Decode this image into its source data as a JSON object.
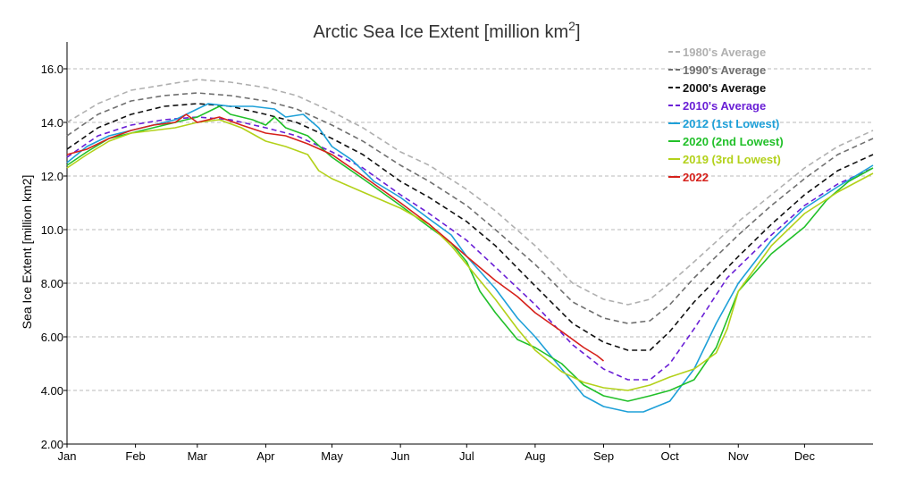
{
  "chart_data": {
    "type": "line",
    "title_main": "Arctic Sea Ice Extent [million km",
    "title_sup": "2",
    "title_end": "]",
    "ylabel": "Sea Ice Extent [million km2]",
    "xlabel": "",
    "xlim": [
      1,
      366
    ],
    "ylim": [
      2,
      17
    ],
    "y_ticks": [
      2,
      4,
      6,
      8,
      10,
      12,
      14,
      16
    ],
    "y_tick_labels": [
      "2.00",
      "4.00",
      "6.00",
      "8.00",
      "10.0",
      "12.0",
      "14.0",
      "16.0"
    ],
    "months": [
      {
        "label": "Jan",
        "day": 1
      },
      {
        "label": "Feb",
        "day": 32
      },
      {
        "label": "Mar",
        "day": 60
      },
      {
        "label": "Apr",
        "day": 91
      },
      {
        "label": "May",
        "day": 121
      },
      {
        "label": "Jun",
        "day": 152
      },
      {
        "label": "Jul",
        "day": 182
      },
      {
        "label": "Aug",
        "day": 213
      },
      {
        "label": "Sep",
        "day": 244
      },
      {
        "label": "Oct",
        "day": 274
      },
      {
        "label": "Nov",
        "day": 305
      },
      {
        "label": "Dec",
        "day": 335
      }
    ],
    "grid": "horizontal dashed",
    "legend_position": "top-right",
    "series": [
      {
        "name": "1980's Average",
        "color": "#b0b0b0",
        "dash": true,
        "points": [
          [
            1,
            14.0
          ],
          [
            15,
            14.7
          ],
          [
            30,
            15.2
          ],
          [
            45,
            15.4
          ],
          [
            60,
            15.6
          ],
          [
            75,
            15.5
          ],
          [
            91,
            15.3
          ],
          [
            105,
            15.0
          ],
          [
            121,
            14.4
          ],
          [
            135,
            13.8
          ],
          [
            152,
            12.9
          ],
          [
            165,
            12.4
          ],
          [
            182,
            11.5
          ],
          [
            195,
            10.7
          ],
          [
            213,
            9.4
          ],
          [
            230,
            8.0
          ],
          [
            244,
            7.4
          ],
          [
            255,
            7.2
          ],
          [
            265,
            7.4
          ],
          [
            274,
            8.0
          ],
          [
            285,
            8.8
          ],
          [
            305,
            10.3
          ],
          [
            320,
            11.3
          ],
          [
            335,
            12.3
          ],
          [
            350,
            13.1
          ],
          [
            366,
            13.7
          ]
        ]
      },
      {
        "name": "1990's Average",
        "color": "#707070",
        "dash": true,
        "points": [
          [
            1,
            13.5
          ],
          [
            15,
            14.3
          ],
          [
            30,
            14.8
          ],
          [
            45,
            15.0
          ],
          [
            60,
            15.1
          ],
          [
            75,
            15.0
          ],
          [
            91,
            14.8
          ],
          [
            105,
            14.5
          ],
          [
            121,
            13.9
          ],
          [
            135,
            13.3
          ],
          [
            152,
            12.4
          ],
          [
            165,
            11.8
          ],
          [
            182,
            10.9
          ],
          [
            195,
            10.0
          ],
          [
            213,
            8.7
          ],
          [
            230,
            7.3
          ],
          [
            244,
            6.7
          ],
          [
            255,
            6.5
          ],
          [
            265,
            6.6
          ],
          [
            274,
            7.2
          ],
          [
            285,
            8.2
          ],
          [
            305,
            9.8
          ],
          [
            320,
            10.9
          ],
          [
            335,
            11.9
          ],
          [
            350,
            12.8
          ],
          [
            366,
            13.4
          ]
        ]
      },
      {
        "name": "2000's Average",
        "color": "#111111",
        "dash": true,
        "points": [
          [
            1,
            13.0
          ],
          [
            15,
            13.8
          ],
          [
            30,
            14.3
          ],
          [
            45,
            14.6
          ],
          [
            60,
            14.7
          ],
          [
            75,
            14.6
          ],
          [
            91,
            14.3
          ],
          [
            105,
            14.0
          ],
          [
            121,
            13.4
          ],
          [
            135,
            12.8
          ],
          [
            152,
            11.8
          ],
          [
            165,
            11.2
          ],
          [
            182,
            10.3
          ],
          [
            195,
            9.4
          ],
          [
            213,
            7.9
          ],
          [
            230,
            6.5
          ],
          [
            244,
            5.8
          ],
          [
            255,
            5.5
          ],
          [
            265,
            5.5
          ],
          [
            274,
            6.2
          ],
          [
            285,
            7.3
          ],
          [
            305,
            9.0
          ],
          [
            320,
            10.2
          ],
          [
            335,
            11.3
          ],
          [
            350,
            12.2
          ],
          [
            366,
            12.8
          ]
        ]
      },
      {
        "name": "2010's Average",
        "color": "#6a1fd6",
        "dash": true,
        "points": [
          [
            1,
            12.7
          ],
          [
            15,
            13.5
          ],
          [
            30,
            13.9
          ],
          [
            45,
            14.1
          ],
          [
            60,
            14.2
          ],
          [
            75,
            14.1
          ],
          [
            91,
            13.8
          ],
          [
            105,
            13.5
          ],
          [
            121,
            12.9
          ],
          [
            135,
            12.3
          ],
          [
            152,
            11.3
          ],
          [
            165,
            10.6
          ],
          [
            182,
            9.6
          ],
          [
            195,
            8.6
          ],
          [
            213,
            7.2
          ],
          [
            230,
            5.7
          ],
          [
            244,
            4.8
          ],
          [
            255,
            4.4
          ],
          [
            265,
            4.4
          ],
          [
            274,
            5.0
          ],
          [
            285,
            6.3
          ],
          [
            300,
            8.2
          ],
          [
            320,
            9.8
          ],
          [
            335,
            10.9
          ],
          [
            350,
            11.7
          ],
          [
            366,
            12.3
          ]
        ]
      },
      {
        "name": "2012 (1st Lowest)",
        "color": "#1ea0d8",
        "dash": false,
        "points": [
          [
            1,
            12.5
          ],
          [
            10,
            13.1
          ],
          [
            20,
            13.5
          ],
          [
            30,
            13.7
          ],
          [
            40,
            13.9
          ],
          [
            50,
            14.1
          ],
          [
            60,
            14.5
          ],
          [
            65,
            14.7
          ],
          [
            75,
            14.6
          ],
          [
            85,
            14.6
          ],
          [
            95,
            14.5
          ],
          [
            100,
            14.2
          ],
          [
            108,
            14.3
          ],
          [
            115,
            13.8
          ],
          [
            121,
            13.1
          ],
          [
            130,
            12.6
          ],
          [
            140,
            11.8
          ],
          [
            152,
            11.2
          ],
          [
            165,
            10.4
          ],
          [
            175,
            9.8
          ],
          [
            182,
            9.0
          ],
          [
            195,
            7.8
          ],
          [
            205,
            6.7
          ],
          [
            213,
            6.0
          ],
          [
            225,
            4.8
          ],
          [
            235,
            3.8
          ],
          [
            244,
            3.4
          ],
          [
            255,
            3.2
          ],
          [
            262,
            3.2
          ],
          [
            274,
            3.6
          ],
          [
            285,
            4.8
          ],
          [
            295,
            6.5
          ],
          [
            305,
            8.0
          ],
          [
            320,
            9.6
          ],
          [
            335,
            10.8
          ],
          [
            350,
            11.6
          ],
          [
            366,
            12.4
          ]
        ]
      },
      {
        "name": "2020 (2nd Lowest)",
        "color": "#22c02a",
        "dash": false,
        "points": [
          [
            1,
            12.4
          ],
          [
            10,
            12.9
          ],
          [
            20,
            13.4
          ],
          [
            30,
            13.6
          ],
          [
            40,
            13.8
          ],
          [
            50,
            14.0
          ],
          [
            60,
            14.2
          ],
          [
            65,
            14.4
          ],
          [
            70,
            14.6
          ],
          [
            75,
            14.3
          ],
          [
            85,
            14.1
          ],
          [
            91,
            13.9
          ],
          [
            95,
            14.2
          ],
          [
            100,
            13.8
          ],
          [
            110,
            13.5
          ],
          [
            121,
            12.7
          ],
          [
            135,
            11.9
          ],
          [
            152,
            10.9
          ],
          [
            165,
            10.1
          ],
          [
            175,
            9.5
          ],
          [
            182,
            8.8
          ],
          [
            188,
            7.7
          ],
          [
            195,
            6.9
          ],
          [
            205,
            5.9
          ],
          [
            213,
            5.6
          ],
          [
            225,
            5.0
          ],
          [
            235,
            4.2
          ],
          [
            244,
            3.8
          ],
          [
            255,
            3.6
          ],
          [
            265,
            3.8
          ],
          [
            274,
            4.0
          ],
          [
            285,
            4.4
          ],
          [
            295,
            5.6
          ],
          [
            305,
            7.7
          ],
          [
            320,
            9.1
          ],
          [
            335,
            10.1
          ],
          [
            345,
            11.1
          ],
          [
            355,
            11.8
          ],
          [
            366,
            12.3
          ]
        ]
      },
      {
        "name": "2019 (3rd Lowest)",
        "color": "#b3d11a",
        "dash": false,
        "points": [
          [
            1,
            12.3
          ],
          [
            10,
            12.8
          ],
          [
            20,
            13.3
          ],
          [
            30,
            13.6
          ],
          [
            40,
            13.7
          ],
          [
            50,
            13.8
          ],
          [
            60,
            14.0
          ],
          [
            70,
            14.1
          ],
          [
            80,
            13.8
          ],
          [
            91,
            13.3
          ],
          [
            100,
            13.1
          ],
          [
            110,
            12.8
          ],
          [
            115,
            12.2
          ],
          [
            121,
            11.9
          ],
          [
            135,
            11.4
          ],
          [
            152,
            10.8
          ],
          [
            165,
            10.2
          ],
          [
            175,
            9.4
          ],
          [
            182,
            8.7
          ],
          [
            195,
            7.4
          ],
          [
            205,
            6.3
          ],
          [
            213,
            5.5
          ],
          [
            225,
            4.7
          ],
          [
            235,
            4.3
          ],
          [
            244,
            4.1
          ],
          [
            255,
            4.0
          ],
          [
            265,
            4.2
          ],
          [
            274,
            4.5
          ],
          [
            285,
            4.8
          ],
          [
            295,
            5.4
          ],
          [
            300,
            6.3
          ],
          [
            305,
            7.7
          ],
          [
            320,
            9.4
          ],
          [
            335,
            10.6
          ],
          [
            350,
            11.4
          ],
          [
            366,
            12.1
          ]
        ]
      },
      {
        "name": "2022",
        "color": "#d6211b",
        "dash": false,
        "points": [
          [
            1,
            12.8
          ],
          [
            10,
            13.0
          ],
          [
            20,
            13.4
          ],
          [
            30,
            13.7
          ],
          [
            40,
            13.9
          ],
          [
            50,
            14.0
          ],
          [
            55,
            14.3
          ],
          [
            60,
            14.0
          ],
          [
            70,
            14.2
          ],
          [
            80,
            13.9
          ],
          [
            91,
            13.6
          ],
          [
            100,
            13.5
          ],
          [
            110,
            13.2
          ],
          [
            121,
            12.8
          ],
          [
            135,
            12.0
          ],
          [
            152,
            11.0
          ],
          [
            165,
            10.2
          ],
          [
            175,
            9.5
          ],
          [
            182,
            9.0
          ],
          [
            195,
            8.1
          ],
          [
            205,
            7.5
          ],
          [
            213,
            6.9
          ],
          [
            225,
            6.2
          ],
          [
            235,
            5.6
          ],
          [
            241,
            5.3
          ],
          [
            244,
            5.1
          ]
        ]
      }
    ]
  }
}
